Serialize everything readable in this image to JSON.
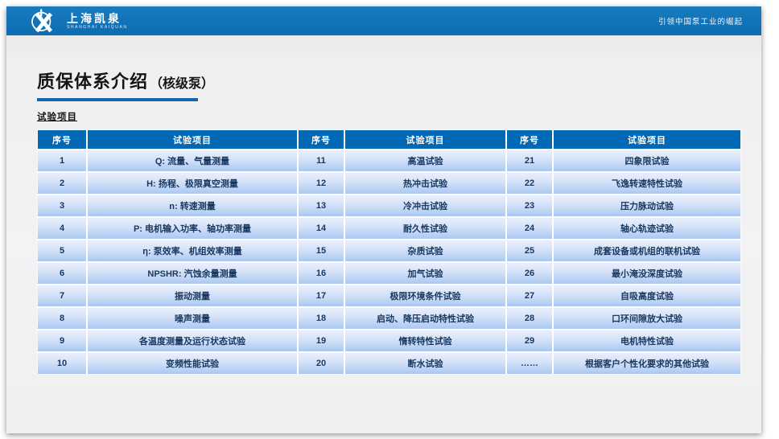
{
  "brand": {
    "logo_icon": "kaiquan-circle-x-logo",
    "name": "上海凯泉",
    "subname": "SHANGHAI KAIQUAN",
    "tagline": "引领中国泵工业的崛起"
  },
  "page": {
    "title": "质保体系介绍",
    "title_suffix": "（核级泵）",
    "section_label": "试验项目"
  },
  "table": {
    "headers": [
      "序号",
      "试验项目",
      "序号",
      "试验项目",
      "序号",
      "试验项目"
    ],
    "rows": [
      [
        "1",
        "Q: 流量、气量测量",
        "11",
        "高温试验",
        "21",
        "四象限试验"
      ],
      [
        "2",
        "H: 扬程、极限真空测量",
        "12",
        "热冲击试验",
        "22",
        "飞逸转速特性试验"
      ],
      [
        "3",
        "n: 转速测量",
        "13",
        "冷冲击试验",
        "23",
        "压力脉动试验"
      ],
      [
        "4",
        "P: 电机输入功率、轴功率测量",
        "14",
        "耐久性试验",
        "24",
        "轴心轨迹试验"
      ],
      [
        "5",
        "η: 泵效率、机组效率测量",
        "15",
        "杂质试验",
        "25",
        "成套设备或机组的联机试验"
      ],
      [
        "6",
        "NPSHR: 汽蚀余量测量",
        "16",
        "加气试验",
        "26",
        "最小淹没深度试验"
      ],
      [
        "7",
        "振动测量",
        "17",
        "极限环境条件试验",
        "27",
        "自吸高度试验"
      ],
      [
        "8",
        "噪声测量",
        "18",
        "启动、降压启动特性试验",
        "28",
        "口环间隙放大试验"
      ],
      [
        "9",
        "各温度测量及运行状态试验",
        "19",
        "惰转特性试验",
        "29",
        "电机特性试验"
      ],
      [
        "10",
        "变频性能试验",
        "20",
        "断水试验",
        "……",
        "根据客户个性化要求的其他试验"
      ]
    ]
  },
  "colors": {
    "banner_blue": "#1173b8",
    "table_header_blue": "#0068b4",
    "row_gradient_top": "#e9f0fc",
    "row_gradient_bottom": "#aac8f2",
    "title_underline": "#1566ae",
    "cell_text": "#17375e"
  }
}
